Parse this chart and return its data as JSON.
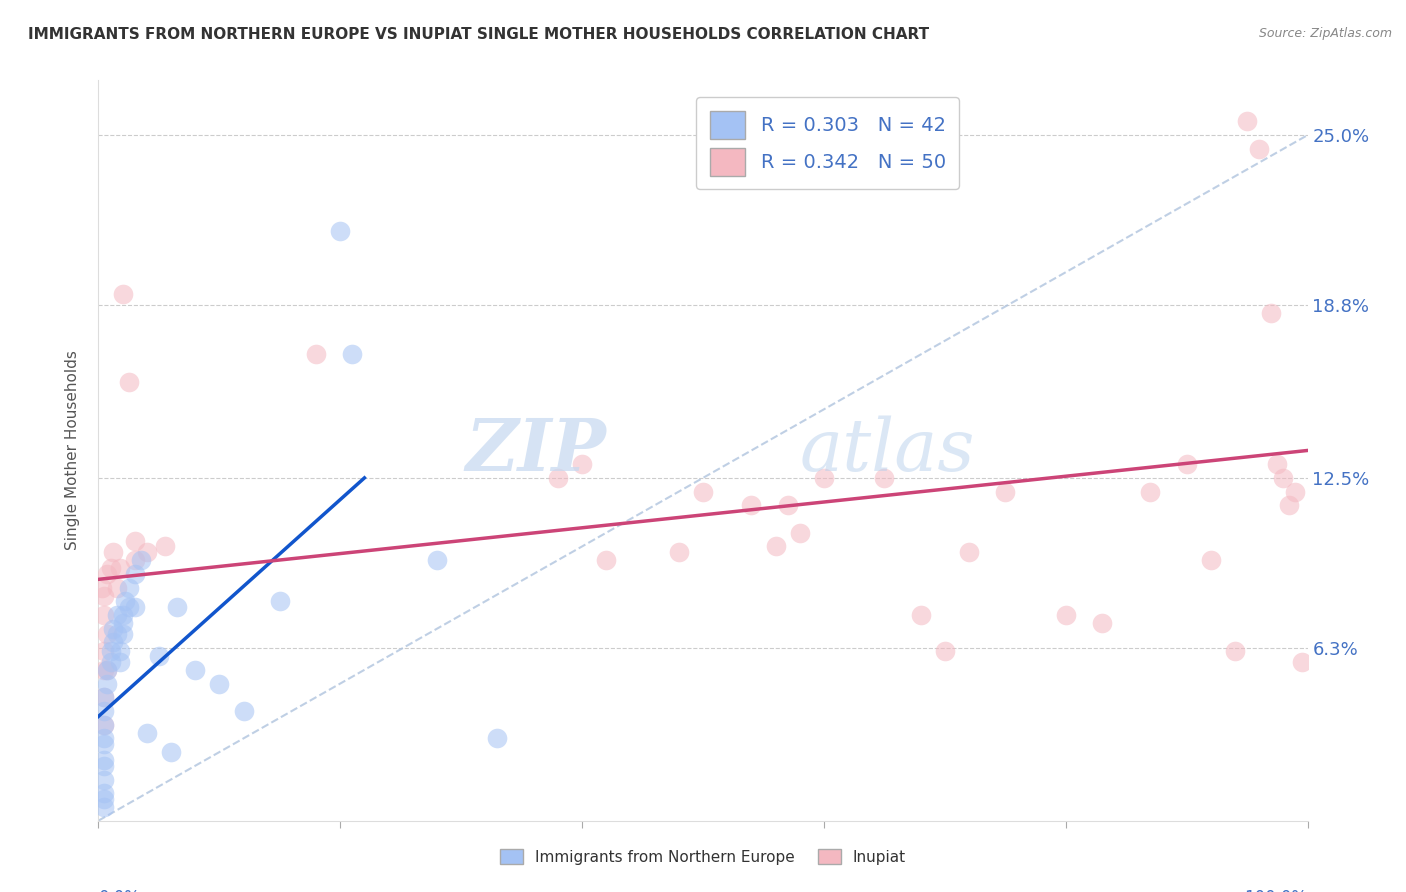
{
  "title": "IMMIGRANTS FROM NORTHERN EUROPE VS INUPIAT SINGLE MOTHER HOUSEHOLDS CORRELATION CHART",
  "source": "Source: ZipAtlas.com",
  "ylabel": "Single Mother Households",
  "ytick_labels": [
    "6.3%",
    "12.5%",
    "18.8%",
    "25.0%"
  ],
  "ytick_values": [
    0.063,
    0.125,
    0.188,
    0.25
  ],
  "blue_color": "#a4c2f4",
  "pink_color": "#f4b8c1",
  "blue_line_color": "#1155cc",
  "pink_line_color": "#cc4477",
  "diag_color": "#b0c4de",
  "watermark_zip": "ZIP",
  "watermark_atlas": "atlas",
  "blue_points_x": [
    0.005,
    0.005,
    0.005,
    0.005,
    0.005,
    0.005,
    0.005,
    0.005,
    0.005,
    0.005,
    0.005,
    0.007,
    0.007,
    0.01,
    0.01,
    0.012,
    0.012,
    0.015,
    0.015,
    0.018,
    0.018,
    0.02,
    0.02,
    0.02,
    0.022,
    0.025,
    0.025,
    0.03,
    0.03,
    0.035,
    0.04,
    0.05,
    0.06,
    0.065,
    0.08,
    0.1,
    0.12,
    0.15,
    0.2,
    0.21,
    0.28,
    0.33
  ],
  "blue_points_y": [
    0.005,
    0.008,
    0.01,
    0.015,
    0.02,
    0.022,
    0.028,
    0.03,
    0.035,
    0.04,
    0.045,
    0.05,
    0.055,
    0.058,
    0.062,
    0.065,
    0.07,
    0.068,
    0.075,
    0.058,
    0.062,
    0.068,
    0.072,
    0.075,
    0.08,
    0.078,
    0.085,
    0.078,
    0.09,
    0.095,
    0.032,
    0.06,
    0.025,
    0.078,
    0.055,
    0.05,
    0.04,
    0.08,
    0.215,
    0.17,
    0.095,
    0.03
  ],
  "pink_points_x": [
    0.003,
    0.005,
    0.005,
    0.005,
    0.005,
    0.005,
    0.005,
    0.007,
    0.007,
    0.007,
    0.01,
    0.012,
    0.015,
    0.018,
    0.02,
    0.025,
    0.03,
    0.03,
    0.04,
    0.055,
    0.18,
    0.38,
    0.4,
    0.42,
    0.48,
    0.5,
    0.54,
    0.56,
    0.57,
    0.58,
    0.6,
    0.65,
    0.68,
    0.7,
    0.72,
    0.75,
    0.8,
    0.83,
    0.87,
    0.9,
    0.92,
    0.94,
    0.95,
    0.96,
    0.97,
    0.975,
    0.98,
    0.985,
    0.99,
    0.995
  ],
  "pink_points_y": [
    0.085,
    0.035,
    0.045,
    0.055,
    0.062,
    0.075,
    0.082,
    0.055,
    0.068,
    0.09,
    0.092,
    0.098,
    0.085,
    0.092,
    0.192,
    0.16,
    0.095,
    0.102,
    0.098,
    0.1,
    0.17,
    0.125,
    0.13,
    0.095,
    0.098,
    0.12,
    0.115,
    0.1,
    0.115,
    0.105,
    0.125,
    0.125,
    0.075,
    0.062,
    0.098,
    0.12,
    0.075,
    0.072,
    0.12,
    0.13,
    0.095,
    0.062,
    0.255,
    0.245,
    0.185,
    0.13,
    0.125,
    0.115,
    0.12,
    0.058
  ],
  "blue_line_x": [
    0.0,
    0.22
  ],
  "blue_line_y": [
    0.038,
    0.125
  ],
  "pink_line_x": [
    0.0,
    1.0
  ],
  "pink_line_y": [
    0.088,
    0.135
  ],
  "diag_line_x": [
    0.0,
    1.0
  ],
  "diag_line_y": [
    0.0,
    0.25
  ],
  "xlim": [
    0.0,
    1.0
  ],
  "ylim": [
    0.0,
    0.27
  ]
}
